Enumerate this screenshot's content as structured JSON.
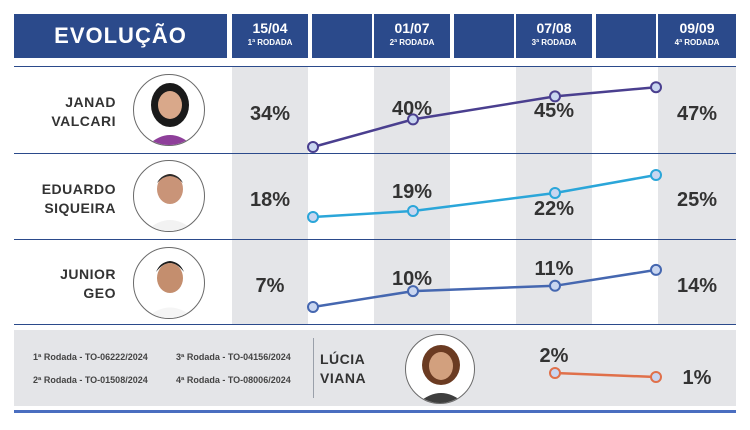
{
  "header": {
    "title": "EVOLUÇÃO",
    "dates": [
      {
        "date": "15/04",
        "round": "1ª RODADA"
      },
      {
        "date": "01/07",
        "round": "2ª RODADA"
      },
      {
        "date": "07/08",
        "round": "3ª RODADA"
      },
      {
        "date": "09/09",
        "round": "4ª RODADA"
      }
    ]
  },
  "candidates": [
    {
      "name": "JANAD\nVALCARI",
      "pct": [
        "34%",
        "40%",
        "45%",
        "47%"
      ]
    },
    {
      "name": "EDUARDO\nSIQUEIRA",
      "pct": [
        "18%",
        "19%",
        "22%",
        "25%"
      ]
    },
    {
      "name": "JUNIOR\nGEO",
      "pct": [
        "7%",
        "10%",
        "11%",
        "14%"
      ]
    },
    {
      "name": "LÚCIA\nVIANA",
      "pct": [
        "2%",
        "1%"
      ]
    }
  ],
  "sources": [
    "1ª Rodada - TO-06222/2024",
    "3ª Rodada - TO-04156/2024",
    "2ª Rodada - TO-01508/2024",
    "4ª Rodada - TO-08006/2024"
  ],
  "colors": {
    "header": "#2b4a8b",
    "janad": "#4a3f8f",
    "eduardo": "#2ba6d9",
    "junior": "#4567b0",
    "lucia": "#e0704a"
  },
  "chart_data": {
    "type": "line",
    "x": [
      "15/04",
      "01/07",
      "07/08",
      "09/09"
    ],
    "series": [
      {
        "name": "JANAD VALCARI",
        "values": [
          34,
          40,
          45,
          47
        ]
      },
      {
        "name": "EDUARDO SIQUEIRA",
        "values": [
          18,
          19,
          22,
          25
        ]
      },
      {
        "name": "JUNIOR GEO",
        "values": [
          7,
          10,
          11,
          14
        ]
      },
      {
        "name": "LÚCIA VIANA",
        "x": [
          "07/08",
          "09/09"
        ],
        "values": [
          2,
          1
        ]
      }
    ],
    "title": "EVOLUÇÃO",
    "ylabel": "",
    "xlabel": ""
  }
}
